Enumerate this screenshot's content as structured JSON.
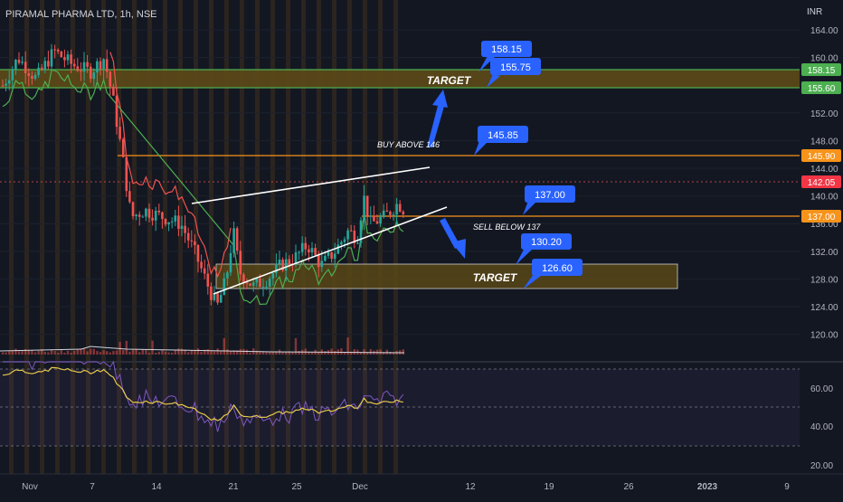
{
  "header": {
    "symbol": "PIRAMAL PHARMA LTD, 1h, NSE",
    "currency": "INR"
  },
  "price_axis": {
    "ticks": [
      "164.00",
      "160.00",
      "156.00",
      "152.00",
      "148.00",
      "144.00",
      "140.00",
      "136.00",
      "132.00",
      "128.00",
      "124.00",
      "120.00"
    ]
  },
  "price_tags": [
    {
      "label": "158.15",
      "color": "#4caf50"
    },
    {
      "label": "155.60",
      "color": "#4caf50"
    },
    {
      "label": "145.90",
      "color": "#f7931a"
    },
    {
      "label": "142.05",
      "color": "#f23645"
    },
    {
      "label": "137.00",
      "color": "#f7931a"
    }
  ],
  "rsi_axis": {
    "ticks": [
      "60.00",
      "40.00",
      "20.00"
    ]
  },
  "time_axis": {
    "ticks": [
      "Nov",
      "7",
      "14",
      "21",
      "25",
      "Dec",
      "12",
      "19",
      "26",
      "2023",
      "9"
    ]
  },
  "annotations": {
    "target_upper": "TARGET",
    "target_lower": "TARGET",
    "buy_above": "BUY ABOVE 146",
    "sell_below": "SELL BELOW 137"
  },
  "callouts": [
    "158.15",
    "155.75",
    "145.85",
    "137.00",
    "130.20",
    "126.60"
  ],
  "colors": {
    "background": "#131722",
    "up": "#26a69a",
    "down": "#ef5350",
    "zone": "#5d4a17",
    "level_green": "#4caf50",
    "level_orange": "#f7931a",
    "callout": "#2962ff",
    "rsi": "#7e57c2",
    "rsi_ma": "#e6c84d"
  }
}
